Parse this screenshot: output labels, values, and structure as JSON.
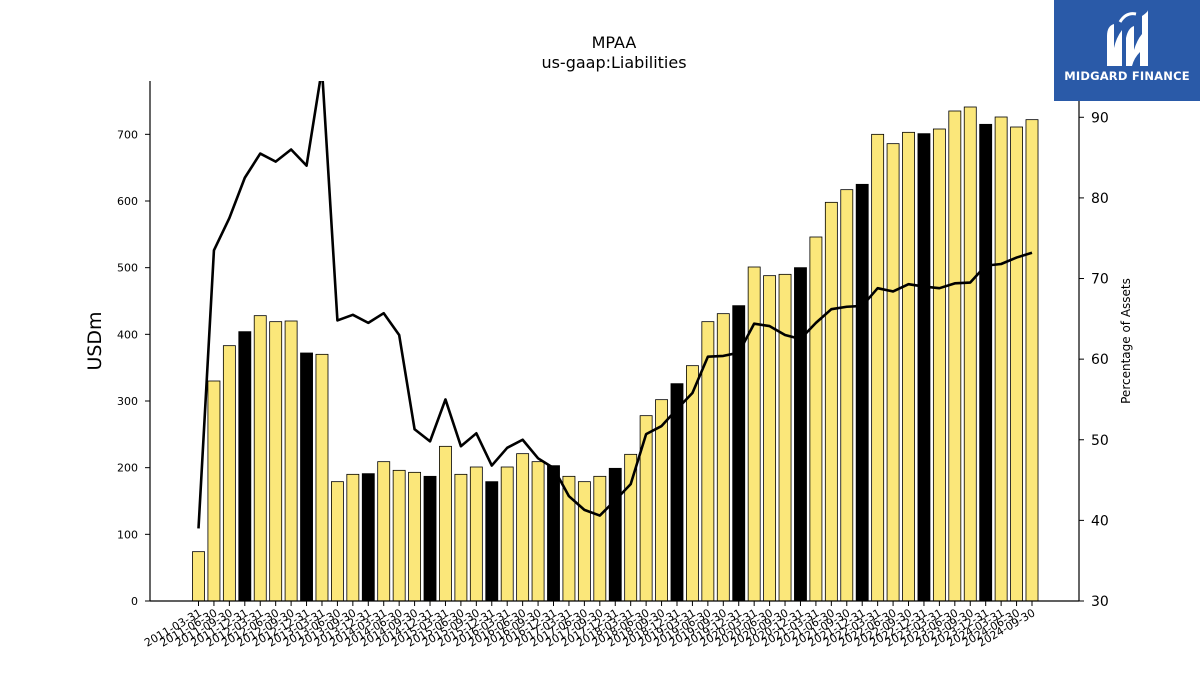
{
  "chart_data": {
    "type": "bar+line",
    "title": "MPAA",
    "subtitle": "us-gaap:Liabilities",
    "ylabel_left": "USDm",
    "ylabel_right": "Percentage of Assets",
    "ylim_left": [
      0,
      780
    ],
    "ylim_right": [
      30,
      94.5
    ],
    "yticks_left": [
      0,
      100,
      200,
      300,
      400,
      500,
      600,
      700
    ],
    "yticks_right": [
      30,
      40,
      50,
      60,
      70,
      80,
      90
    ],
    "x": [
      "2011-03-31",
      "2011-06-30",
      "2011-09-30",
      "2011-12-31",
      "2012-03-31",
      "2012-06-30",
      "2012-09-30",
      "2012-12-31",
      "2013-03-31",
      "2013-06-30",
      "2013-09-30",
      "2013-12-31",
      "2014-03-31",
      "2014-06-30",
      "2014-09-30",
      "2014-12-31",
      "2015-03-31",
      "2015-06-30",
      "2015-09-30",
      "2015-12-31",
      "2016-03-31",
      "2016-06-30",
      "2016-09-30",
      "2016-12-31",
      "2017-03-31",
      "2017-06-30",
      "2017-09-30",
      "2017-12-31",
      "2018-03-31",
      "2018-06-30",
      "2018-09-30",
      "2018-12-31",
      "2019-03-31",
      "2019-06-30",
      "2019-09-30",
      "2019-12-31",
      "2020-03-31",
      "2020-06-30",
      "2020-09-30",
      "2020-12-31",
      "2021-03-31",
      "2021-06-30",
      "2021-09-30",
      "2021-12-31",
      "2022-03-31",
      "2022-06-30",
      "2022-09-30",
      "2022-12-31",
      "2023-03-31",
      "2023-06-30",
      "2023-09-30",
      "2023-12-31",
      "2024-03-31",
      "2024-06-30",
      "2024-09-30"
    ],
    "series": [
      {
        "type": "bar",
        "axis": "left",
        "values": [
          74,
          330,
          383,
          404,
          428,
          419,
          420,
          372,
          370,
          179,
          190,
          191,
          209,
          196,
          193,
          187,
          232,
          190,
          201,
          179,
          201,
          221,
          209,
          203,
          187,
          179,
          187,
          199,
          220,
          278,
          302,
          326,
          353,
          419,
          431,
          443,
          501,
          488,
          490,
          500,
          546,
          598,
          617,
          625,
          700,
          686,
          703,
          701,
          708,
          735,
          741,
          715,
          726,
          711,
          722
        ],
        "highlight_color": "#000000",
        "color": "#fbe77a"
      },
      {
        "type": "line",
        "axis": "right",
        "color": "#000000",
        "values": [
          39,
          73.5,
          77.5,
          82.5,
          85.5,
          84.5,
          86,
          84,
          96,
          64.8,
          65.5,
          64.5,
          65.7,
          63,
          51.3,
          49.8,
          55,
          49.2,
          50.8,
          46.8,
          49,
          50,
          47.7,
          46.5,
          43,
          41.3,
          40.6,
          42.5,
          44.5,
          50.7,
          51.7,
          53.8,
          55.8,
          60.3,
          60.4,
          60.8,
          64.4,
          64.1,
          63,
          62.5,
          64.5,
          66.2,
          66.5,
          66.6,
          68.8,
          68.4,
          69.3,
          69,
          68.8,
          69.4,
          69.5,
          71.6,
          71.8,
          72.6,
          73.2
        ]
      }
    ]
  },
  "logo": {
    "text": "MIDGARD FINANCE",
    "bg_color": "#2a5aa8"
  }
}
